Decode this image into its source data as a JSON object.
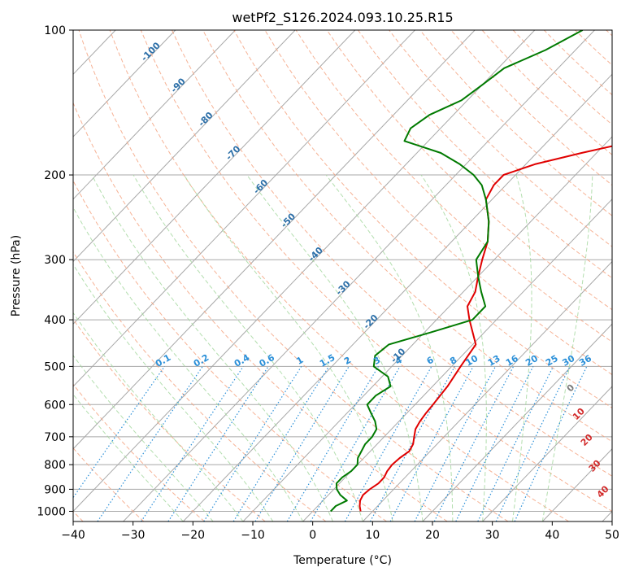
{
  "chart_data": {
    "type": "line",
    "subtype": "skew-t log-p diagram",
    "title": "wetPf2_S126.2024.093.10.25.R15",
    "xlabel": "Temperature (°C)",
    "ylabel": "Pressure (hPa)",
    "xlim": [
      -40,
      50
    ],
    "ylim_pressure": [
      1050,
      100
    ],
    "y_scale": "log",
    "x_ticks": [
      -40,
      -30,
      -20,
      -10,
      0,
      10,
      20,
      30,
      40,
      50
    ],
    "y_ticks": [
      100,
      200,
      300,
      400,
      500,
      600,
      700,
      800,
      900,
      1000
    ],
    "grid": true,
    "colors": {
      "temperature": "#e00000",
      "dewpoint": "#007a00",
      "isotherm": "#a8a8a8",
      "dry_adiabat": "#f4a582",
      "moist_adiabat": "#a6d8a0",
      "mixing_ratio": "#2a8fd8",
      "isotherm_label": "#2c6fa8",
      "adiabat_label": "#d22a2a",
      "background": "#ffffff"
    },
    "isotherm_labels": [
      -100,
      -90,
      -80,
      -70,
      -60,
      -50,
      -40,
      -30,
      -20,
      -10
    ],
    "mixing_ratio_labels": [
      "0.1",
      "0.2",
      "0.4",
      "0.6",
      "1",
      "1.5",
      "2",
      "3",
      "4",
      "6",
      "8",
      "10",
      "13",
      "16",
      "20",
      "25",
      "30",
      "36"
    ],
    "theta_e_labels": [
      "0",
      "10",
      "20",
      "30",
      "40"
    ],
    "series": [
      {
        "name": "Temperature",
        "pressure": [
          1000,
          975,
          950,
          925,
          900,
          875,
          850,
          825,
          800,
          775,
          750,
          725,
          700,
          675,
          650,
          625,
          600,
          550,
          500,
          450,
          400,
          375,
          350,
          325,
          300,
          275,
          250,
          225,
          210,
          200,
          190,
          180,
          170,
          160,
          150,
          140,
          130,
          120,
          110,
          100
        ],
        "temperature_c": [
          8.0,
          7.0,
          6.2,
          5.8,
          6.0,
          6.5,
          6.5,
          6.0,
          5.8,
          6.0,
          6.5,
          6.0,
          5.0,
          4.0,
          3.5,
          3.2,
          3.0,
          2.5,
          1.5,
          0.5,
          -4.5,
          -7.0,
          -8.0,
          -10.0,
          -12.0,
          -14.0,
          -17.0,
          -21.0,
          -22.0,
          -22.0,
          -18.5,
          -12.5,
          -5.5,
          -1.0,
          1.5,
          4.5,
          5.0,
          5.5,
          7.0,
          8.5
        ]
      },
      {
        "name": "Dewpoint",
        "pressure": [
          1000,
          975,
          950,
          925,
          900,
          875,
          850,
          825,
          800,
          775,
          750,
          725,
          700,
          675,
          650,
          625,
          600,
          575,
          550,
          525,
          500,
          475,
          450,
          425,
          400,
          375,
          350,
          325,
          300,
          275,
          250,
          225,
          210,
          200,
          190,
          180,
          170,
          160,
          150,
          140,
          130,
          120,
          110,
          100
        ],
        "temperature_c": [
          3.0,
          3.0,
          4.0,
          2.0,
          0.5,
          -0.5,
          -0.5,
          0.0,
          0.0,
          -1.0,
          -1.5,
          -2.0,
          -2.0,
          -2.5,
          -4.0,
          -6.0,
          -8.0,
          -8.0,
          -7.0,
          -9.0,
          -13.0,
          -14.5,
          -14.0,
          -9.0,
          -4.0,
          -4.0,
          -7.0,
          -10.0,
          -13.0,
          -14.0,
          -17.0,
          -21.0,
          -24.0,
          -27.0,
          -31.0,
          -36.0,
          -44.0,
          -45.0,
          -44.0,
          -41.0,
          -40.0,
          -39.0,
          -35.0,
          -32.0
        ]
      }
    ]
  }
}
